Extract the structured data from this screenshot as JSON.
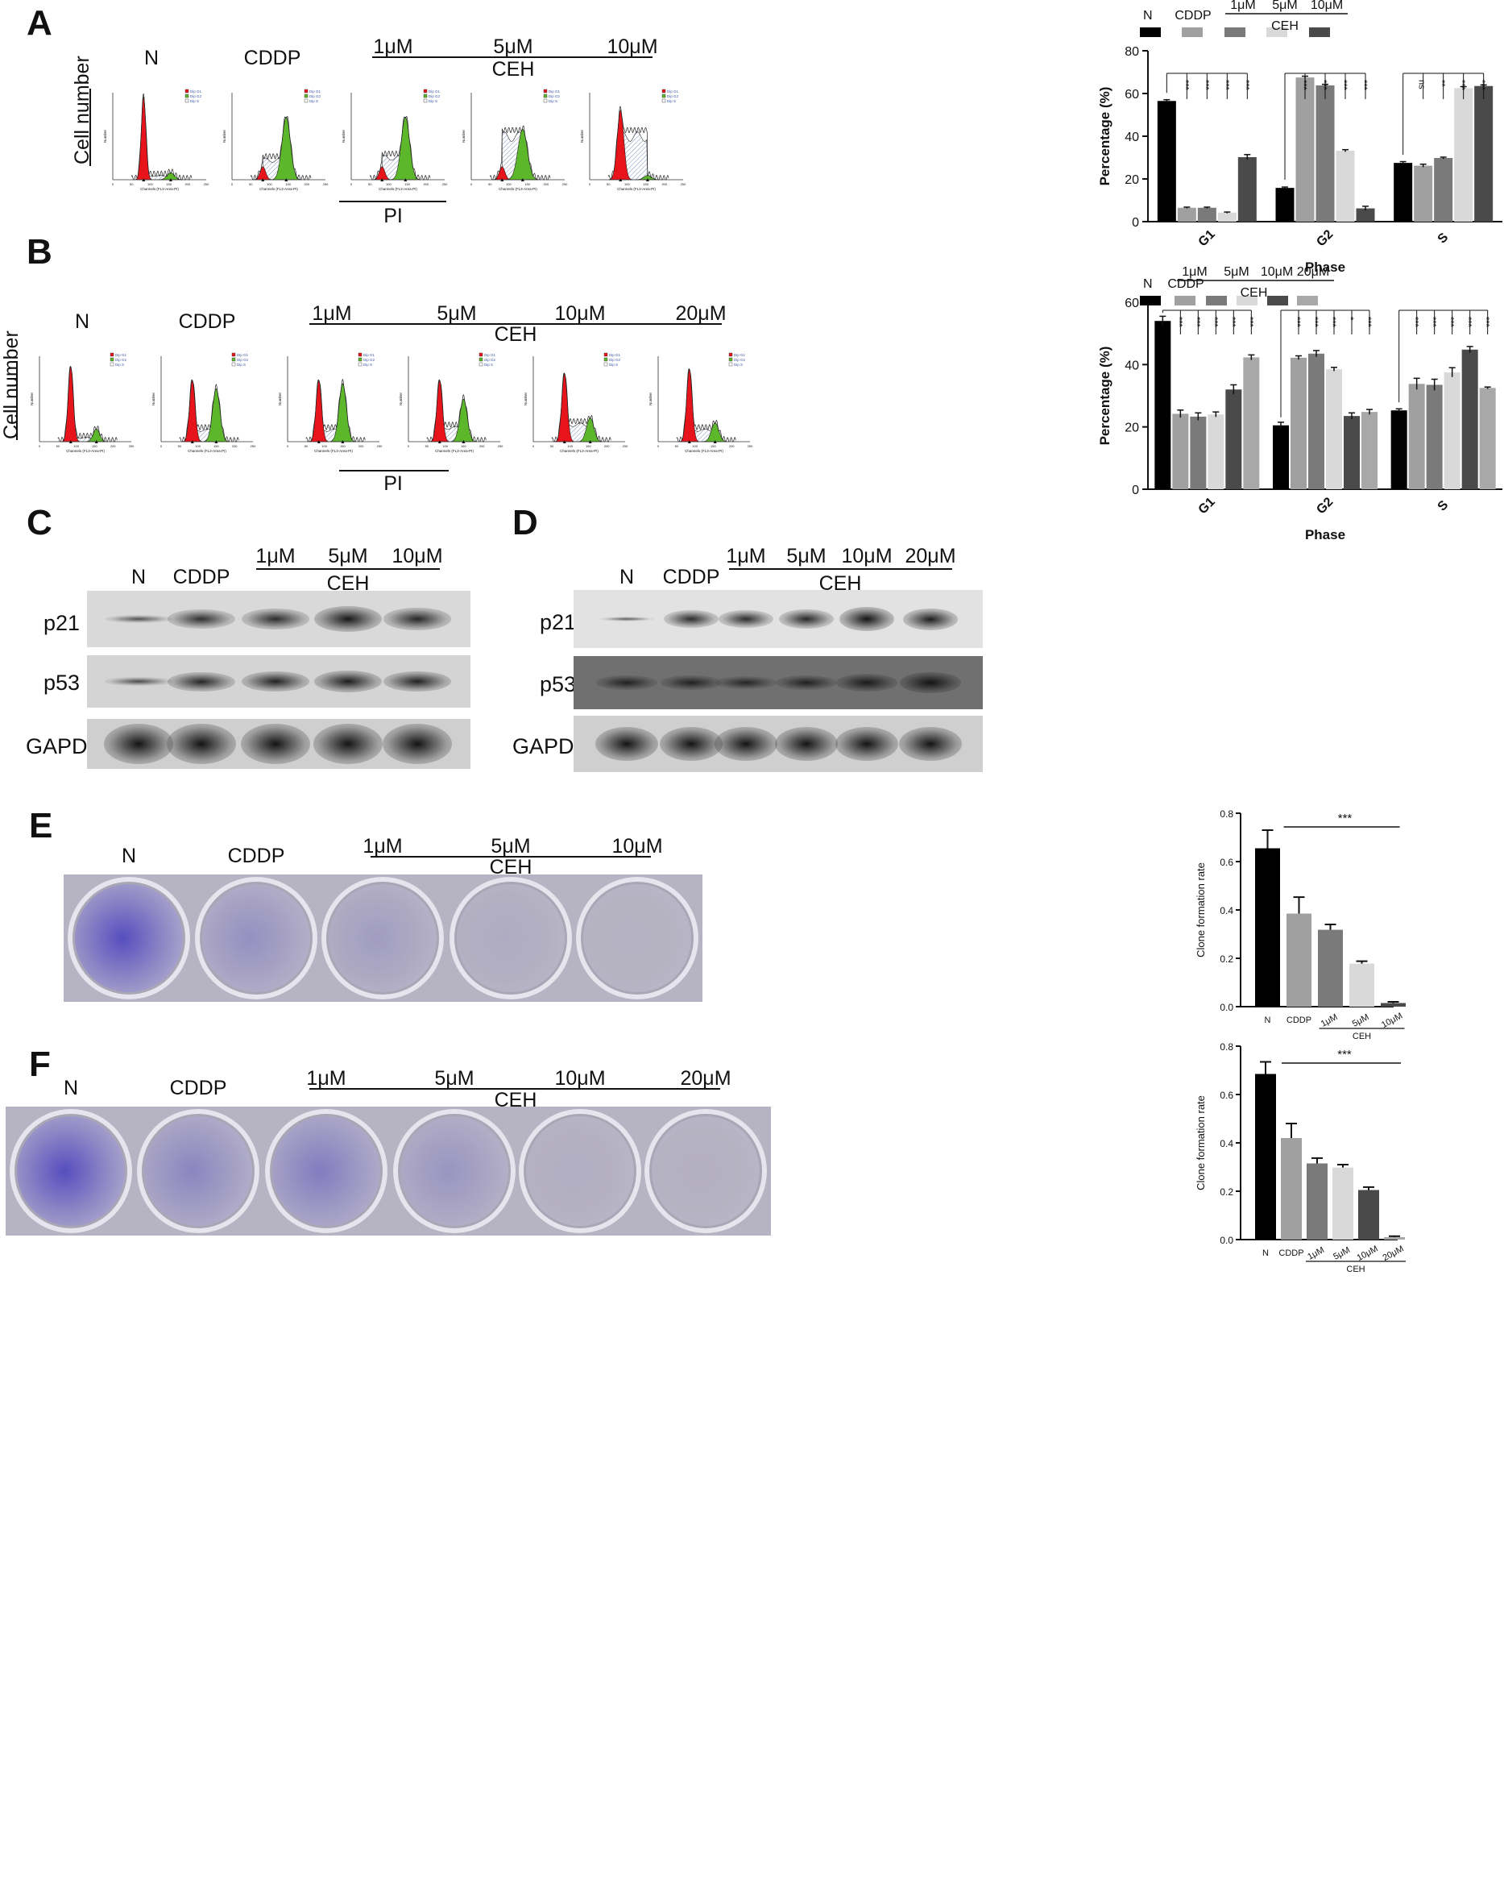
{
  "panels": {
    "A": {
      "letter": "A",
      "groups": [
        "N",
        "CDDP"
      ],
      "conc": [
        "1μM",
        "5μM",
        "10μM"
      ],
      "ceh": "CEH",
      "ylabel": "Cell number",
      "xlabel": "PI"
    },
    "B": {
      "letter": "B",
      "groups": [
        "N",
        "CDDP"
      ],
      "conc": [
        "1μM",
        "5μM",
        "10μM",
        "20μM"
      ],
      "ceh": "CEH",
      "ylabel": "Cell number",
      "xlabel": "PI"
    },
    "C": {
      "letter": "C",
      "groups": [
        "N",
        "CDDP"
      ],
      "conc": [
        "1μM",
        "5μM",
        "10μM"
      ],
      "ceh": "CEH",
      "rows": [
        "p21",
        "p53",
        "GAPDH"
      ]
    },
    "D": {
      "letter": "D",
      "groups": [
        "N",
        "CDDP"
      ],
      "conc": [
        "1μM",
        "5μM",
        "10μM",
        "20μM"
      ],
      "ceh": "CEH",
      "rows": [
        "p21",
        "p53",
        "GAPDH"
      ]
    },
    "E": {
      "letter": "E",
      "groups": [
        "N",
        "CDDP"
      ],
      "conc": [
        "1μM",
        "5μM",
        "10μM"
      ],
      "ceh": "CEH"
    },
    "F": {
      "letter": "F",
      "groups": [
        "N",
        "CDDP"
      ],
      "conc": [
        "1μM",
        "5μM",
        "10μM",
        "20μM"
      ],
      "ceh": "CEH"
    }
  },
  "histogram_text": {
    "xaxis": "Channels (FL3-Area-PI)",
    "yaxis": "Number",
    "legend": [
      "Dip G1",
      "Dip G2",
      "Dip S"
    ],
    "xticks": [
      "0",
      "50",
      "100",
      "150",
      "200",
      "250"
    ]
  },
  "colors": {
    "g1": "#e8141b",
    "g2": "#5cb82a",
    "s_hatch": "#7c8fc4",
    "black": "#000000",
    "gray1": "#a0a0a0",
    "gray2": "#7a7a7a",
    "gray3": "#d9d9d9",
    "gray4": "#4a4a4a",
    "crystal_violet": "#5a4fb4"
  },
  "chart_data": [
    {
      "type": "bar",
      "panel": "A",
      "categories": [
        "G1",
        "G2",
        "S"
      ],
      "xlabel": "Phase",
      "ylabel": "Percentage (%)",
      "ylim": [
        0,
        80
      ],
      "yticks": [
        "0",
        "20",
        "40",
        "60",
        "80"
      ],
      "series": [
        {
          "name": "N",
          "values": [
            56.5,
            15.8,
            27.5
          ],
          "errors": [
            0.6,
            0.4,
            0.6
          ],
          "color": "#000000"
        },
        {
          "name": "CDDP",
          "values": [
            6.5,
            67.5,
            26.2
          ],
          "errors": [
            0.3,
            0.6,
            0.7
          ],
          "color": "#a0a0a0"
        },
        {
          "name": "1μM",
          "values": [
            6.5,
            63.8,
            29.8
          ],
          "errors": [
            0.3,
            0.5,
            0.4
          ],
          "color": "#7a7a7a"
        },
        {
          "name": "5μM",
          "values": [
            4.2,
            33.2,
            62.5
          ],
          "errors": [
            0.3,
            0.5,
            0.7
          ],
          "color": "#d9d9d9"
        },
        {
          "name": "10μM",
          "values": [
            30.2,
            6.2,
            63.5
          ],
          "errors": [
            1.2,
            1.0,
            0.5
          ],
          "color": "#4a4a4a"
        }
      ],
      "legend_top": [
        "1μM",
        "5μM",
        "10μM"
      ],
      "legend_group": "CEH",
      "significance": [
        [
          "***",
          "***",
          "***",
          "***"
        ],
        [
          "***",
          "***",
          "***",
          "***"
        ],
        [
          "ns",
          "**",
          "***",
          "***"
        ]
      ]
    },
    {
      "type": "bar",
      "panel": "B",
      "categories": [
        "G1",
        "G2",
        "S"
      ],
      "xlabel": "Phase",
      "ylabel": "Percentage (%)",
      "ylim": [
        0,
        60
      ],
      "yticks": [
        "0",
        "20",
        "40",
        "60"
      ],
      "series": [
        {
          "name": "N",
          "values": [
            54.0,
            20.5,
            25.3
          ],
          "errors": [
            1.5,
            1.0,
            0.5
          ],
          "color": "#000000"
        },
        {
          "name": "CDDP",
          "values": [
            24.2,
            42.2,
            33.8
          ],
          "errors": [
            1.2,
            0.6,
            1.8
          ],
          "color": "#a0a0a0"
        },
        {
          "name": "1μM",
          "values": [
            23.3,
            43.5,
            33.5
          ],
          "errors": [
            1.2,
            1.0,
            1.8
          ],
          "color": "#7a7a7a"
        },
        {
          "name": "5μM",
          "values": [
            24.0,
            38.5,
            37.5
          ],
          "errors": [
            0.8,
            0.6,
            1.5
          ],
          "color": "#d9d9d9"
        },
        {
          "name": "10μM",
          "values": [
            32.0,
            23.5,
            44.8
          ],
          "errors": [
            1.5,
            1.0,
            1.0
          ],
          "color": "#4a4a4a"
        },
        {
          "name": "20μM",
          "values": [
            42.3,
            24.8,
            32.5
          ],
          "errors": [
            0.8,
            0.8,
            0.3
          ],
          "color": "#a8a8a8"
        }
      ],
      "legend_top": [
        "1μM",
        "5μM",
        "10μM",
        "20μM"
      ],
      "legend_group": "CEH",
      "significance": [
        [
          "***",
          "***",
          "***",
          "***",
          "***"
        ],
        [
          "***",
          "***",
          "***",
          "*",
          "***"
        ],
        [
          "***",
          "***",
          "***",
          "***",
          "***"
        ]
      ]
    },
    {
      "type": "bar",
      "panel": "E",
      "categories": [
        "N",
        "CDDP",
        "1μM",
        "5μM",
        "10μM"
      ],
      "group_label": "CEH",
      "ylabel": "Clone formation rate",
      "ylim": [
        0,
        0.8
      ],
      "yticks": [
        "0.0",
        "0.2",
        "0.4",
        "0.6",
        "0.8"
      ],
      "values": [
        0.655,
        0.385,
        0.318,
        0.178,
        0.015
      ],
      "errors": [
        0.075,
        0.068,
        0.022,
        0.01,
        0.005
      ],
      "colors": [
        "#000000",
        "#a0a0a0",
        "#7a7a7a",
        "#d9d9d9",
        "#4a4a4a"
      ],
      "significance": "***"
    },
    {
      "type": "bar",
      "panel": "F",
      "categories": [
        "N",
        "CDDP",
        "1μM",
        "5μM",
        "10μM",
        "20μM"
      ],
      "group_label": "CEH",
      "ylabel": "Clone formation rate",
      "ylim": [
        0,
        0.8
      ],
      "yticks": [
        "0.0",
        "0.2",
        "0.4",
        "0.6",
        "0.8"
      ],
      "values": [
        0.685,
        0.42,
        0.315,
        0.298,
        0.205,
        0.01
      ],
      "errors": [
        0.05,
        0.06,
        0.022,
        0.012,
        0.012,
        0.004
      ],
      "colors": [
        "#000000",
        "#a0a0a0",
        "#7a7a7a",
        "#d9d9d9",
        "#4a4a4a",
        "#a8a8a8"
      ],
      "significance": "***"
    }
  ]
}
